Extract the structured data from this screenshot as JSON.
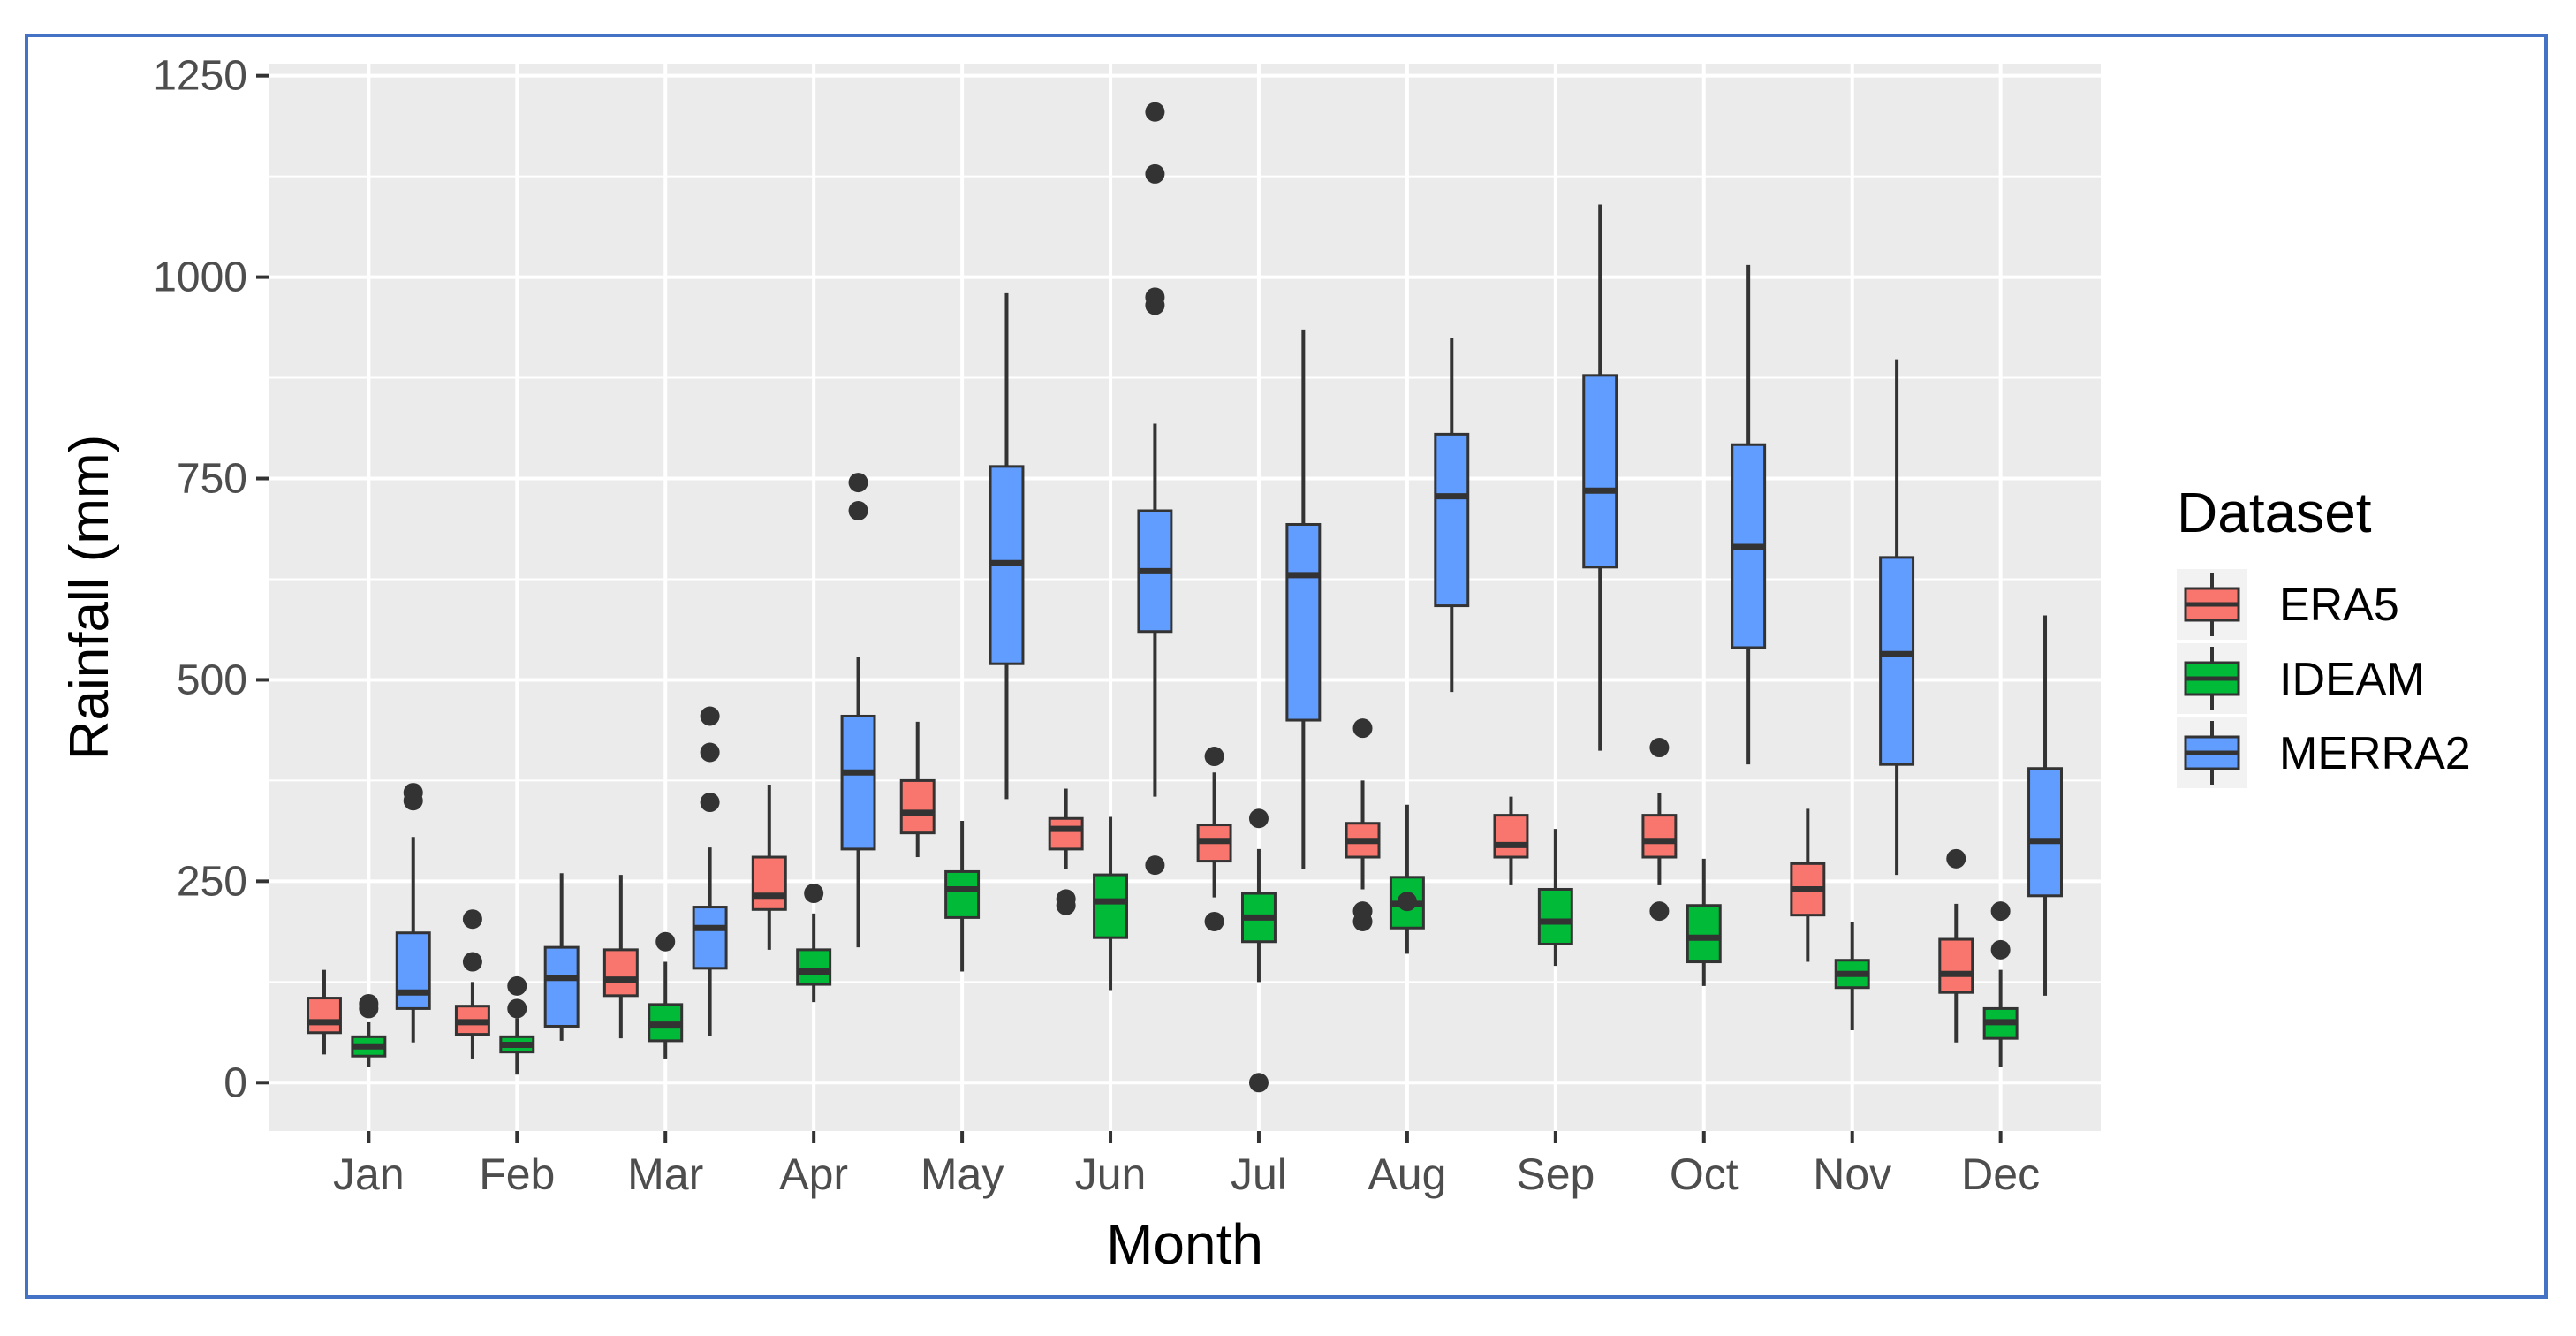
{
  "colors": {
    "ERA5": "#f8766d",
    "IDEAM": "#00ba38",
    "MERRA2": "#619cff",
    "panel": "#ebebeb",
    "grid": "#ffffff",
    "frame": "#4472c4"
  },
  "chart_data": {
    "type": "boxplot",
    "title": "",
    "xlabel": "Month",
    "ylabel": "Rainfall (mm)",
    "ylim": [
      -60,
      1265
    ],
    "yticks": [
      0,
      250,
      500,
      750,
      1000,
      1250
    ],
    "ytick_labels": [
      "0",
      "250",
      "500",
      "750",
      "1000",
      "1250"
    ],
    "grid": true,
    "legend": {
      "title": "Dataset",
      "position": "right"
    },
    "categories": [
      "Jan",
      "Feb",
      "Mar",
      "Apr",
      "May",
      "Jun",
      "Jul",
      "Aug",
      "Sep",
      "Oct",
      "Nov",
      "Dec"
    ],
    "series": [
      {
        "name": "ERA5",
        "boxes": [
          {
            "min": 35,
            "q1": 62,
            "median": 75,
            "q3": 105,
            "max": 140,
            "outliers": []
          },
          {
            "min": 30,
            "q1": 60,
            "median": 75,
            "q3": 95,
            "max": 125,
            "outliers": [
              150,
              203
            ]
          },
          {
            "min": 55,
            "q1": 108,
            "median": 128,
            "q3": 165,
            "max": 258,
            "outliers": []
          },
          {
            "min": 165,
            "q1": 215,
            "median": 232,
            "q3": 280,
            "max": 370,
            "outliers": []
          },
          {
            "min": 280,
            "q1": 310,
            "median": 335,
            "q3": 375,
            "max": 448,
            "outliers": []
          },
          {
            "min": 265,
            "q1": 290,
            "median": 315,
            "q3": 328,
            "max": 365,
            "outliers": [
              220,
              228
            ]
          },
          {
            "min": 230,
            "q1": 275,
            "median": 300,
            "q3": 320,
            "max": 385,
            "outliers": [
              200,
              405
            ]
          },
          {
            "min": 240,
            "q1": 280,
            "median": 300,
            "q3": 322,
            "max": 375,
            "outliers": [
              200,
              213,
              440
            ]
          },
          {
            "min": 245,
            "q1": 280,
            "median": 295,
            "q3": 332,
            "max": 355,
            "outliers": []
          },
          {
            "min": 245,
            "q1": 280,
            "median": 300,
            "q3": 332,
            "max": 360,
            "outliers": [
              213,
              416
            ]
          },
          {
            "min": 150,
            "q1": 208,
            "median": 240,
            "q3": 272,
            "max": 340,
            "outliers": []
          },
          {
            "min": 50,
            "q1": 112,
            "median": 135,
            "q3": 178,
            "max": 222,
            "outliers": [
              278
            ]
          }
        ]
      },
      {
        "name": "IDEAM",
        "boxes": [
          {
            "min": 20,
            "q1": 33,
            "median": 45,
            "q3": 57,
            "max": 75,
            "outliers": [
              92,
              98
            ]
          },
          {
            "min": 10,
            "q1": 38,
            "median": 47,
            "q3": 57,
            "max": 80,
            "outliers": [
              92,
              120
            ]
          },
          {
            "min": 30,
            "q1": 52,
            "median": 72,
            "q3": 97,
            "max": 150,
            "outliers": [
              175
            ]
          },
          {
            "min": 100,
            "q1": 122,
            "median": 138,
            "q3": 165,
            "max": 210,
            "outliers": [
              235
            ]
          },
          {
            "min": 138,
            "q1": 205,
            "median": 240,
            "q3": 262,
            "max": 325,
            "outliers": []
          },
          {
            "min": 115,
            "q1": 180,
            "median": 225,
            "q3": 258,
            "max": 330,
            "outliers": []
          },
          {
            "min": 125,
            "q1": 175,
            "median": 205,
            "q3": 235,
            "max": 290,
            "outliers": [
              0,
              328
            ]
          },
          {
            "min": 160,
            "q1": 192,
            "median": 222,
            "q3": 255,
            "max": 345,
            "outliers": [
              225
            ]
          },
          {
            "min": 145,
            "q1": 172,
            "median": 200,
            "q3": 240,
            "max": 315,
            "outliers": []
          },
          {
            "min": 120,
            "q1": 150,
            "median": 180,
            "q3": 220,
            "max": 278,
            "outliers": []
          },
          {
            "min": 65,
            "q1": 118,
            "median": 135,
            "q3": 152,
            "max": 200,
            "outliers": []
          },
          {
            "min": 20,
            "q1": 55,
            "median": 75,
            "q3": 92,
            "max": 140,
            "outliers": [
              165,
              213
            ]
          }
        ]
      },
      {
        "name": "MERRA2",
        "boxes": [
          {
            "min": 50,
            "q1": 92,
            "median": 112,
            "q3": 186,
            "max": 305,
            "outliers": [
              350,
              360
            ]
          },
          {
            "min": 52,
            "q1": 70,
            "median": 130,
            "q3": 168,
            "max": 260,
            "outliers": []
          },
          {
            "min": 58,
            "q1": 142,
            "median": 192,
            "q3": 218,
            "max": 292,
            "outliers": [
              348,
              410,
              455
            ]
          },
          {
            "min": 168,
            "q1": 290,
            "median": 385,
            "q3": 455,
            "max": 528,
            "outliers": [
              710,
              745
            ]
          },
          {
            "min": 352,
            "q1": 520,
            "median": 645,
            "q3": 765,
            "max": 980,
            "outliers": []
          },
          {
            "min": 355,
            "q1": 560,
            "median": 635,
            "q3": 710,
            "max": 818,
            "outliers": [
              270,
              965,
              975,
              1128,
              1205
            ]
          },
          {
            "min": 265,
            "q1": 450,
            "median": 630,
            "q3": 693,
            "max": 935,
            "outliers": []
          },
          {
            "min": 485,
            "q1": 592,
            "median": 728,
            "q3": 805,
            "max": 925,
            "outliers": []
          },
          {
            "min": 412,
            "q1": 640,
            "median": 735,
            "q3": 878,
            "max": 1090,
            "outliers": []
          },
          {
            "min": 395,
            "q1": 540,
            "median": 665,
            "q3": 792,
            "max": 1015,
            "outliers": []
          },
          {
            "min": 258,
            "q1": 395,
            "median": 532,
            "q3": 652,
            "max": 898,
            "outliers": []
          },
          {
            "min": 108,
            "q1": 232,
            "median": 300,
            "q3": 390,
            "max": 580,
            "outliers": []
          }
        ]
      }
    ]
  }
}
